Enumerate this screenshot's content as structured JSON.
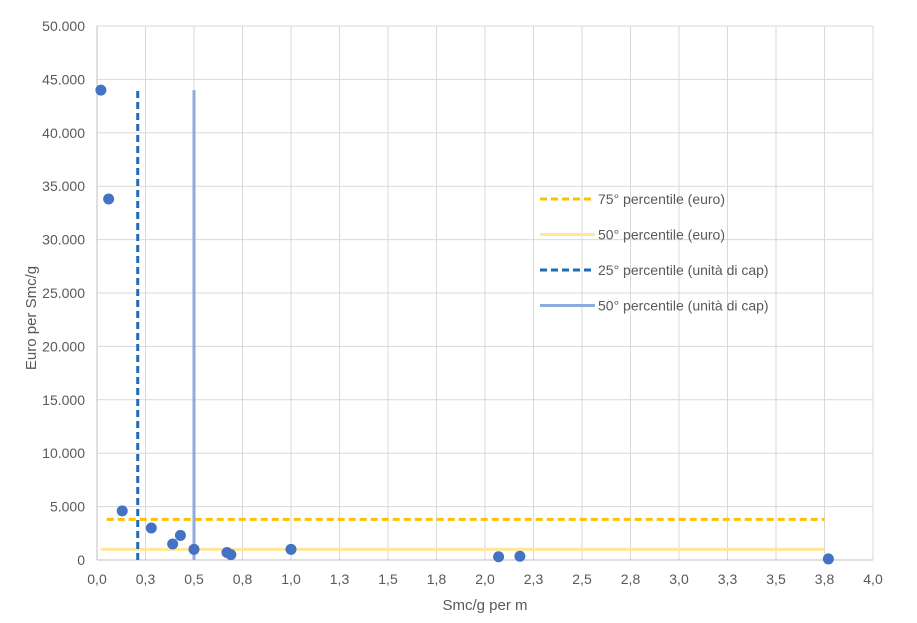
{
  "chart_data": {
    "type": "scatter",
    "title": "",
    "xlabel": "Smc/g per m",
    "ylabel": "Euro per Smc/g",
    "xlim": [
      0,
      4
    ],
    "ylim": [
      0,
      50000
    ],
    "x_ticks": [
      {
        "value": 0.0,
        "label": "0,0"
      },
      {
        "value": 0.25,
        "label": "0,3"
      },
      {
        "value": 0.5,
        "label": "0,5"
      },
      {
        "value": 0.75,
        "label": "0,8"
      },
      {
        "value": 1.0,
        "label": "1,0"
      },
      {
        "value": 1.25,
        "label": "1,3"
      },
      {
        "value": 1.5,
        "label": "1,5"
      },
      {
        "value": 1.75,
        "label": "1,8"
      },
      {
        "value": 2.0,
        "label": "2,0"
      },
      {
        "value": 2.25,
        "label": "2,3"
      },
      {
        "value": 2.5,
        "label": "2,5"
      },
      {
        "value": 2.75,
        "label": "2,8"
      },
      {
        "value": 3.0,
        "label": "3,0"
      },
      {
        "value": 3.25,
        "label": "3,3"
      },
      {
        "value": 3.5,
        "label": "3,5"
      },
      {
        "value": 3.75,
        "label": "3,8"
      },
      {
        "value": 4.0,
        "label": "4,0"
      }
    ],
    "y_ticks": [
      {
        "value": 0,
        "label": "0"
      },
      {
        "value": 5000,
        "label": "5.000"
      },
      {
        "value": 10000,
        "label": "10.000"
      },
      {
        "value": 15000,
        "label": "15.000"
      },
      {
        "value": 20000,
        "label": "20.000"
      },
      {
        "value": 25000,
        "label": "25.000"
      },
      {
        "value": 30000,
        "label": "30.000"
      },
      {
        "value": 35000,
        "label": "35.000"
      },
      {
        "value": 40000,
        "label": "40.000"
      },
      {
        "value": 45000,
        "label": "45.000"
      },
      {
        "value": 50000,
        "label": "50.000"
      }
    ],
    "grid": {
      "x": true,
      "y": true
    },
    "points": {
      "color": "#4472c4",
      "x": [
        0.02,
        0.06,
        0.13,
        0.28,
        0.39,
        0.43,
        0.5,
        0.67,
        0.69,
        1.0,
        2.07,
        2.18,
        3.77
      ],
      "y": [
        44000,
        33800,
        4600,
        3000,
        1500,
        2300,
        1000,
        700,
        500,
        1000,
        300,
        350,
        100
      ]
    },
    "reference_lines": [
      {
        "name": "75° percentile (euro)",
        "orientation": "horizontal",
        "value": 3800,
        "from": 0.05,
        "to": 3.75,
        "color": "#ffc000",
        "style": "dashed"
      },
      {
        "name": "50° percentile (euro)",
        "orientation": "horizontal",
        "value": 1000,
        "from": 0.02,
        "to": 3.75,
        "color": "#ffe699",
        "style": "solid"
      },
      {
        "name": "25° percentile (unità di cap)",
        "orientation": "vertical",
        "value": 0.21,
        "from": 0,
        "to": 44000,
        "color": "#1f6bb5",
        "style": "dashed"
      },
      {
        "name": "50° percentile (unità di cap)",
        "orientation": "vertical",
        "value": 0.5,
        "from": 0,
        "to": 44000,
        "color": "#8faadc",
        "style": "solid"
      }
    ],
    "legend": {
      "position": "right-inside"
    }
  }
}
